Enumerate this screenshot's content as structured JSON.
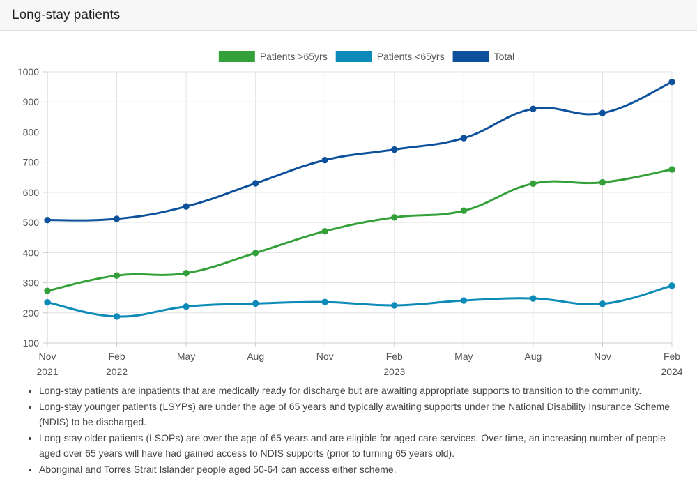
{
  "header": {
    "title": "Long-stay patients"
  },
  "chart_data": {
    "type": "line",
    "title": "",
    "xlabel": "",
    "ylabel": "",
    "ylim": [
      100,
      1000
    ],
    "yticks": [
      "100",
      "200",
      "300",
      "400",
      "500",
      "600",
      "700",
      "800",
      "900",
      "1000"
    ],
    "grid": true,
    "legend_position": "top-center",
    "categories": [
      {
        "month": "Nov",
        "year": "2021"
      },
      {
        "month": "Feb",
        "year": "2022"
      },
      {
        "month": "May",
        "year": ""
      },
      {
        "month": "Aug",
        "year": ""
      },
      {
        "month": "Nov",
        "year": ""
      },
      {
        "month": "Feb",
        "year": "2023"
      },
      {
        "month": "May",
        "year": ""
      },
      {
        "month": "Aug",
        "year": ""
      },
      {
        "month": "Nov",
        "year": ""
      },
      {
        "month": "Feb",
        "year": "2024"
      }
    ],
    "series": [
      {
        "name": "Patients >65yrs",
        "color": "#33a03a",
        "values": [
          273,
          324,
          332,
          399,
          471,
          517,
          539,
          629,
          633,
          676
        ]
      },
      {
        "name": "Patients <65yrs",
        "color": "#0c8ab8",
        "values": [
          235,
          188,
          221,
          231,
          236,
          225,
          241,
          248,
          230,
          290
        ]
      },
      {
        "name": "Total",
        "color": "#0d519c",
        "values": [
          508,
          512,
          553,
          630,
          707,
          742,
          780,
          877,
          863,
          966
        ]
      }
    ]
  },
  "notes": [
    "Long-stay patients are inpatients that are medically ready for discharge but are awaiting appropriate supports to transition to the community.",
    "Long-stay younger patients (LSYPs) are under the age of 65 years and typically awaiting supports under the National Disability Insurance Scheme (NDIS) to be discharged.",
    "Long-stay older patients (LSOPs) are over the age of 65 years and are eligible for aged care services. Over time, an increasing number of people aged over 65 years will have had gained access to NDIS supports (prior to turning 65 years old).",
    "Aboriginal and Torres Strait Islander people aged 50-64 can access either scheme."
  ]
}
